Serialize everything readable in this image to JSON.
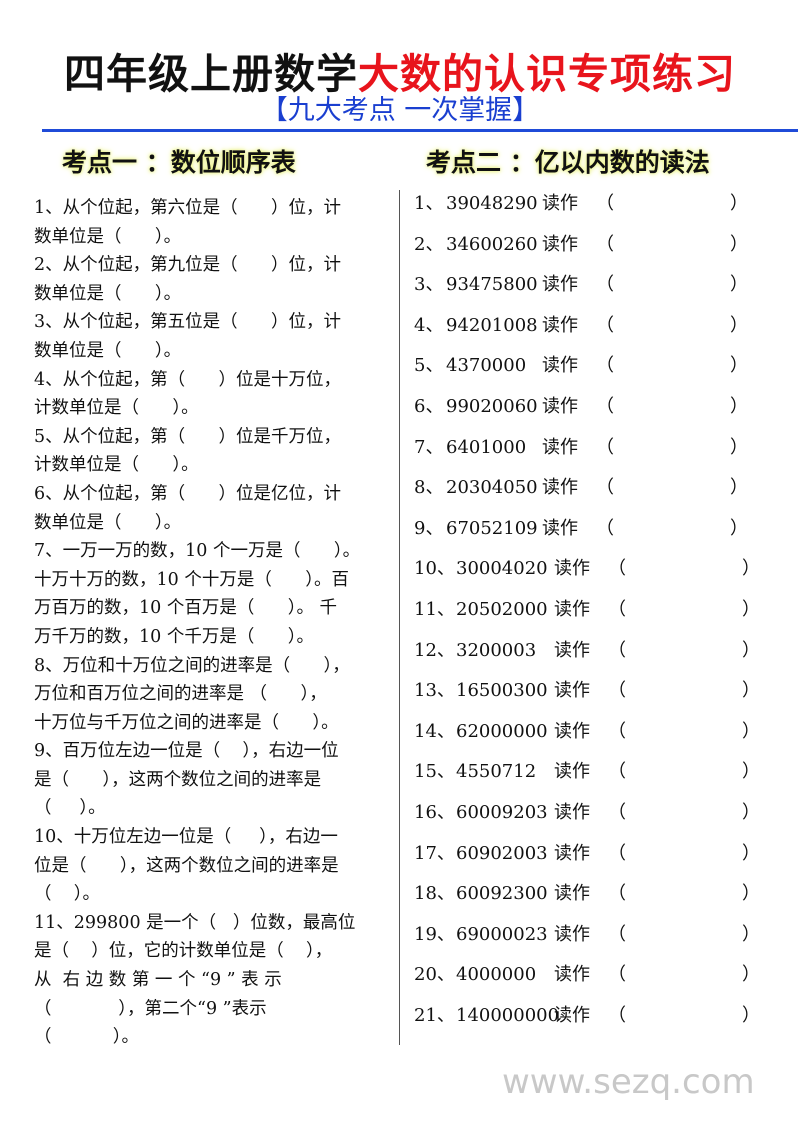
{
  "header": {
    "title_black": "四年级上册数学",
    "title_red": "大数的认识专项练习",
    "subtitle": "【九大考点 一次掌握】"
  },
  "sections": {
    "one": "考点一 ：数位顺序表",
    "two": "考点二 ：亿以内数的读法"
  },
  "left_lines": [
    "1、从个位起，第六位是（      ）位，计",
    "数单位是（      ）。",
    "2、从个位起，第九位是（      ）位，计",
    "数单位是（      ）。",
    "3、从个位起，第五位是（      ）位，计",
    "数单位是（      ）。",
    "4、从个位起，第（      ）位是十万位，",
    "计数单位是（      ）。",
    "5、从个位起，第（      ）位是千万位，",
    "计数单位是（      ）。",
    "6、从个位起，第（      ）位是亿位，计",
    "数单位是（      ）。",
    "7、一万一万的数，10 个一万是（      ）。",
    "十万十万的数，10 个十万是（      ）。百",
    "万百万的数，10 个百万是（      ）。 千",
    "万千万的数，10 个千万是（      ）。",
    "8、万位和十万位之间的进率是（      ），",
    "万位和百万位之间的进率是 （      ），",
    "十万位与千万位之间的进率是（      ）。",
    "9、百万位左边一位是（    ），右边一位",
    "是（      ），这两个数位之间的进率是",
    "（     ）。",
    "10、十万位左边一位是（     ），右边一",
    "位是（      ），这两个数位之间的进率是",
    "（    ）。",
    "11、299800 是一个（   ）位数，最高位",
    "是（    ）位，它的计数单位是（    ），",
    "从  右 边 数 第 一 个 “9 ” 表 示",
    "（            ），第二个“9 ”表示",
    "（           ）。"
  ],
  "right_items": [
    {
      "n": "1、",
      "num": "39048290",
      "read": "读作"
    },
    {
      "n": "2、",
      "num": "34600260",
      "read": "读作"
    },
    {
      "n": "3、",
      "num": "93475800",
      "read": "读作"
    },
    {
      "n": "4、",
      "num": "94201008",
      "read": "读作"
    },
    {
      "n": "5、",
      "num": "4370000",
      "read": "读作"
    },
    {
      "n": "6、",
      "num": "99020060",
      "read": "读作"
    },
    {
      "n": "7、",
      "num": "6401000",
      "read": "读作"
    },
    {
      "n": "8、",
      "num": "20304050",
      "read": "读作"
    },
    {
      "n": "9、",
      "num": "67052109",
      "read": "读作"
    },
    {
      "n": "10、",
      "num": "30004020",
      "read": "读作"
    },
    {
      "n": "11、",
      "num": "20502000",
      "read": "读作"
    },
    {
      "n": "12、",
      "num": "3200003",
      "read": "读作"
    },
    {
      "n": "13、",
      "num": "16500300",
      "read": "读作"
    },
    {
      "n": "14、",
      "num": "62000000",
      "read": "读作"
    },
    {
      "n": "15、",
      "num": "4550712",
      "read": "读作"
    },
    {
      "n": "16、",
      "num": "60009203",
      "read": "读作"
    },
    {
      "n": "17、",
      "num": "60902003",
      "read": "读作"
    },
    {
      "n": "18、",
      "num": "60092300",
      "read": "读作"
    },
    {
      "n": "19、",
      "num": "69000023",
      "read": "读作"
    },
    {
      "n": "20、",
      "num": "4000000",
      "read": "读作"
    },
    {
      "n": "21、",
      "num": "140000000",
      "read": "读作"
    }
  ],
  "brackets": {
    "open": "（",
    "close": "）"
  },
  "watermark": "www.sezq.com",
  "colors": {
    "red": "#e8141c",
    "blue": "#1a3fd0"
  }
}
